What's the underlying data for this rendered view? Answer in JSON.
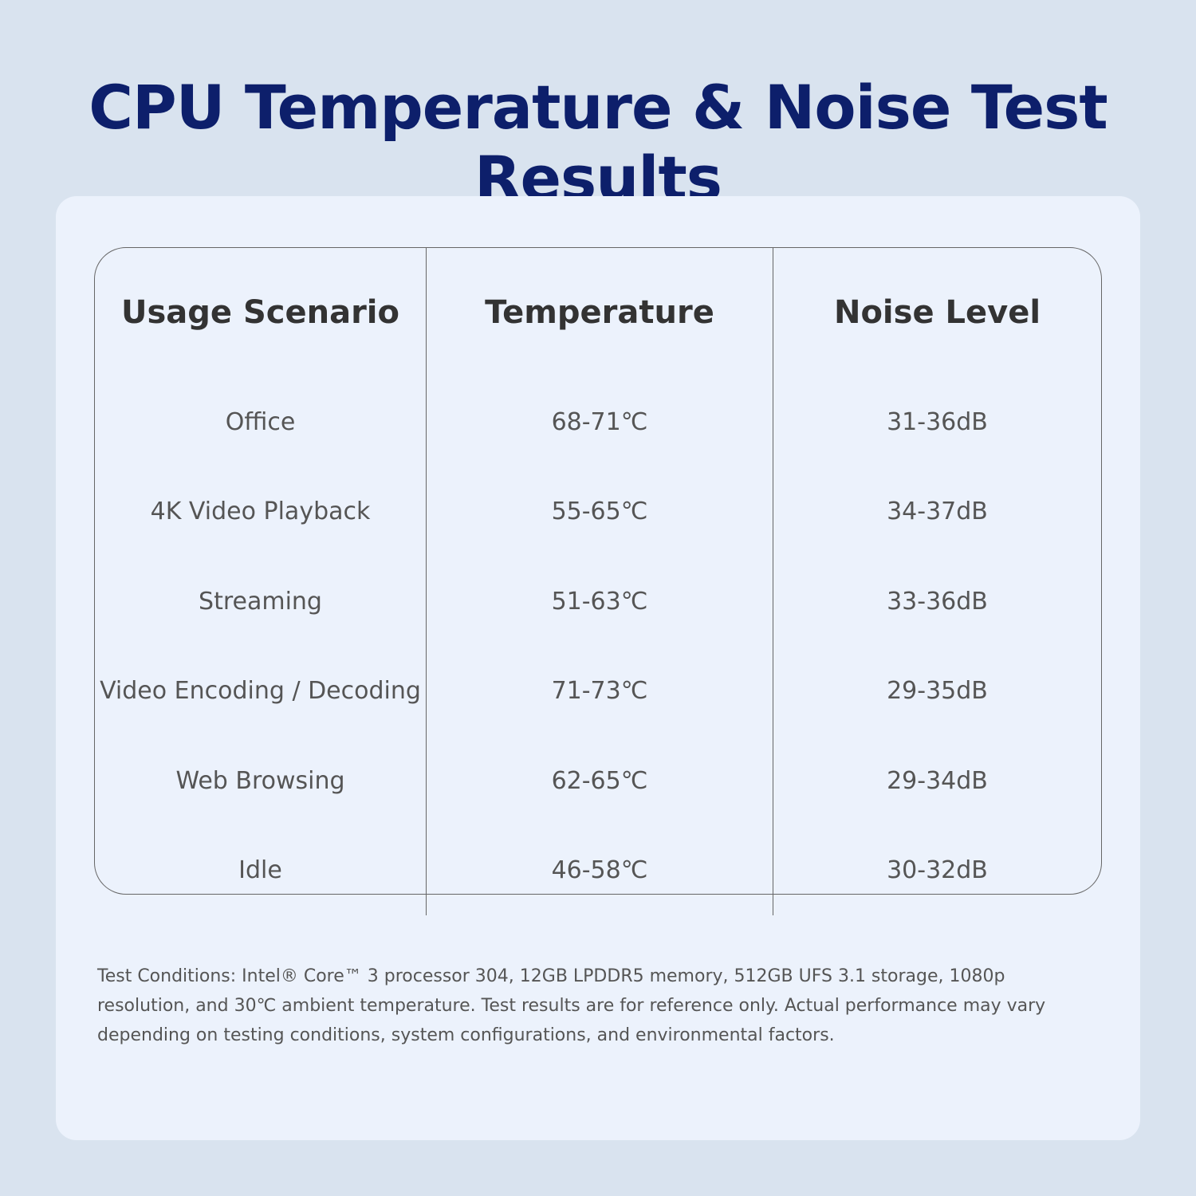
{
  "title": "CPU Temperature & Noise Test Results",
  "table": {
    "headers": [
      "Usage Scenario",
      "Temperature",
      "Noise Level"
    ],
    "rows": [
      [
        "Office",
        "68-71℃",
        "31-36dB"
      ],
      [
        "4K Video Playback",
        "55-65℃",
        "34-37dB"
      ],
      [
        "Streaming",
        "51-63℃",
        "33-36dB"
      ],
      [
        "Video Encoding / Decoding",
        "71-73℃",
        "29-35dB"
      ],
      [
        "Web Browsing",
        "62-65℃",
        "29-34dB"
      ],
      [
        "Idle",
        "46-58℃",
        "30-32dB"
      ]
    ]
  },
  "footnote": "Test Conditions: Intel® Core™ 3 processor 304, 12GB LPDDR5 memory, 512GB UFS 3.1 storage, 1080p resolution, and 30℃ ambient temperature. Test results are for reference only. Actual performance may vary depending on testing conditions, system configurations, and environmental factors."
}
